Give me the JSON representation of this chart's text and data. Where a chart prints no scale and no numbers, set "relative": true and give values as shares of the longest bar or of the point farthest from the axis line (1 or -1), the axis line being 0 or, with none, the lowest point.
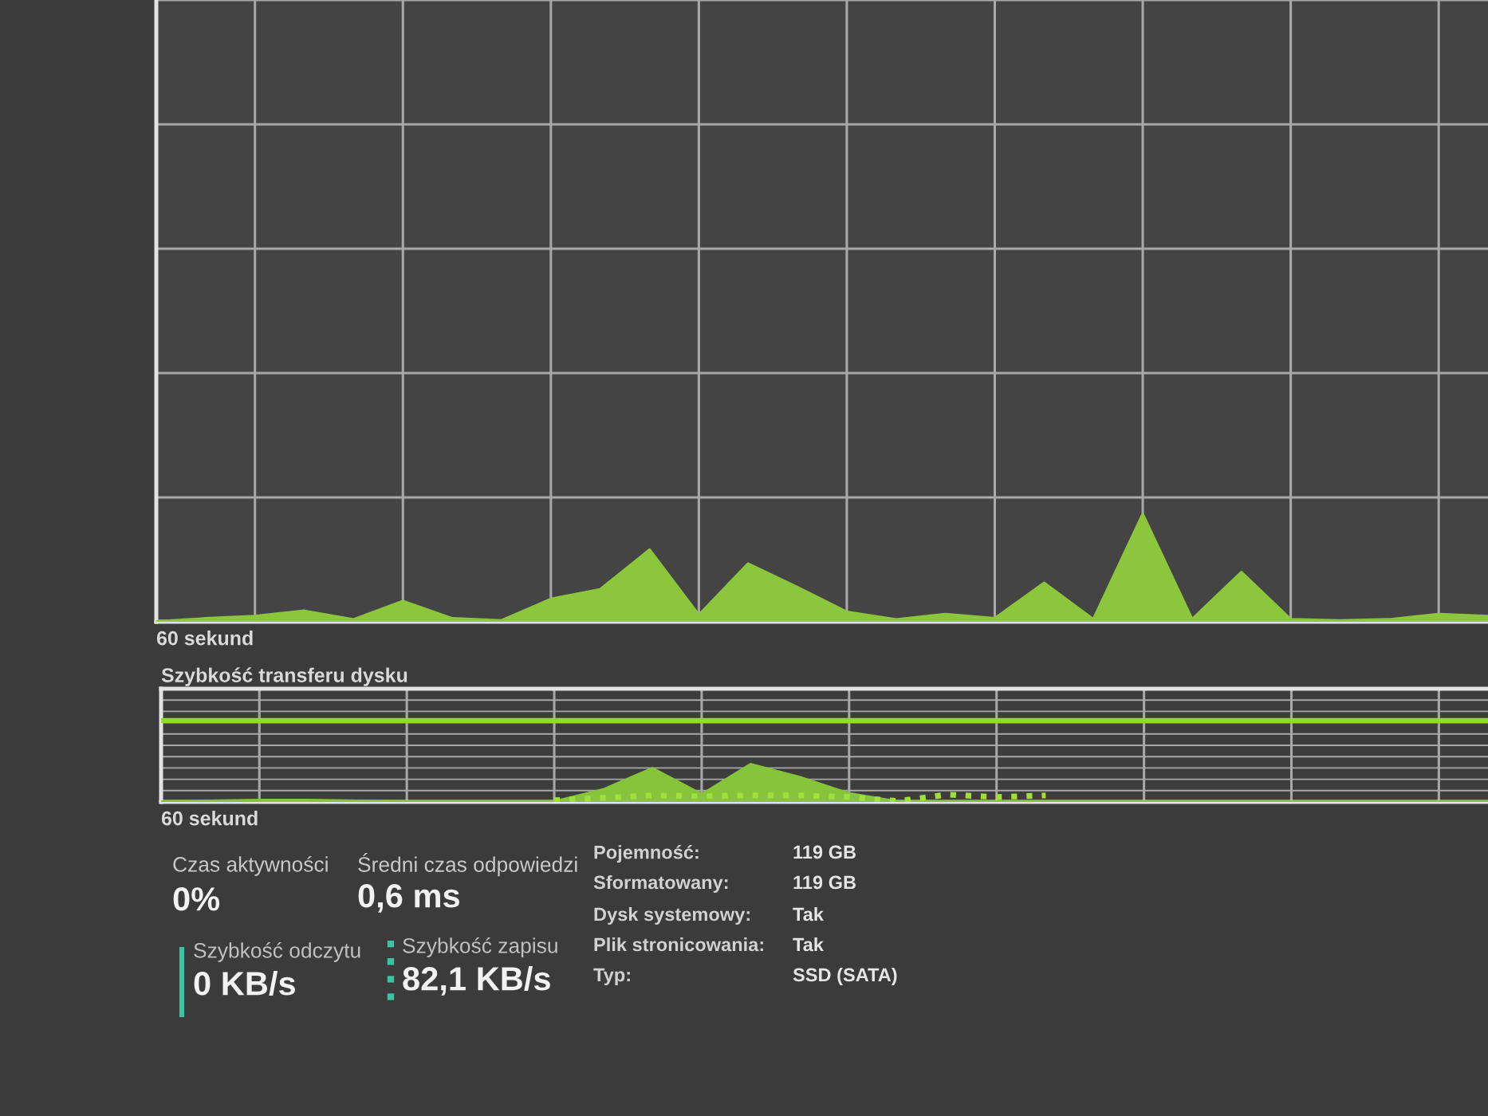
{
  "chart_data": [
    {
      "type": "area",
      "relative": true,
      "xlabel": "60 sekund",
      "grid": true,
      "tick_labels": false,
      "categories": [
        null,
        null,
        null,
        null,
        null,
        null,
        null,
        null,
        null,
        null,
        null,
        null,
        null,
        null,
        null,
        null,
        null,
        null,
        null,
        null,
        null,
        null,
        null,
        null,
        null,
        null,
        null,
        null
      ],
      "series": [
        {
          "color": "#8cc63c",
          "values": [
            0,
            0.03,
            0.05,
            0.1,
            0.02,
            0.19,
            0.03,
            0.01,
            0.21,
            0.3,
            0.67,
            0.06,
            0.54,
            0.32,
            0.09,
            0.02,
            0.07,
            0.03,
            0.36,
            0.02,
            1,
            0.02,
            0.46,
            0.02,
            0.01,
            0.02,
            0.07,
            0.05
          ]
        }
      ]
    },
    {
      "type": "line",
      "relative": true,
      "title": "Szybkość transferu dysku",
      "xlabel": "60 sekund",
      "grid": true,
      "tick_labels": false,
      "categories": [
        null,
        null,
        null,
        null,
        null,
        null,
        null,
        null,
        null,
        null,
        null,
        null,
        null,
        null,
        null,
        null,
        null,
        null,
        null,
        null,
        null,
        null,
        null,
        null,
        null,
        null,
        null,
        null
      ],
      "series": [
        {
          "type": "line",
          "color": "#8fdc2a",
          "line_style": "solid",
          "values": [
            1,
            1,
            1,
            1,
            1,
            1,
            1,
            1,
            1,
            1,
            1,
            1,
            1,
            1,
            1,
            1,
            1,
            1,
            1,
            1,
            1,
            1,
            1,
            1,
            1,
            1,
            1,
            1
          ]
        },
        {
          "type": "area",
          "color": "#86c43a",
          "values": [
            0,
            0.01,
            0.02,
            0.02,
            0.01,
            0,
            0,
            0,
            0,
            0.15,
            0.41,
            0.09,
            0.46,
            0.3,
            0.1,
            0,
            0,
            0,
            0,
            0,
            0,
            0,
            0,
            0,
            0,
            0,
            0,
            0
          ]
        },
        {
          "type": "line",
          "color": "#9ee03c",
          "line_style": "dotted",
          "values": [
            null,
            null,
            null,
            null,
            null,
            null,
            null,
            null,
            0.02,
            0.05,
            0.08,
            0.07,
            0.08,
            0.08,
            0.06,
            0.01,
            0.09,
            0.06,
            0.08,
            null,
            null,
            null,
            null,
            null,
            null,
            null,
            null,
            null
          ]
        }
      ]
    },
    {
      "type": "other",
      "colors": [
        "#3cc3a0",
        "#3cc3a0"
      ],
      "annotations": [
        "Czas aktywności",
        "0%",
        "Średni czas odpowiedzi",
        "0,6 ms",
        "Szybkość odczytu",
        "0 KB/s",
        "Szybkość zapisu",
        "82,1 KB/s",
        "Pojemność:",
        "119 GB",
        "Sformatowany:",
        "119 GB",
        "Dysk systemowy:",
        "Tak",
        "Plik stronicowania:",
        "Tak",
        "Typ:",
        "SSD (SATA)"
      ]
    }
  ]
}
